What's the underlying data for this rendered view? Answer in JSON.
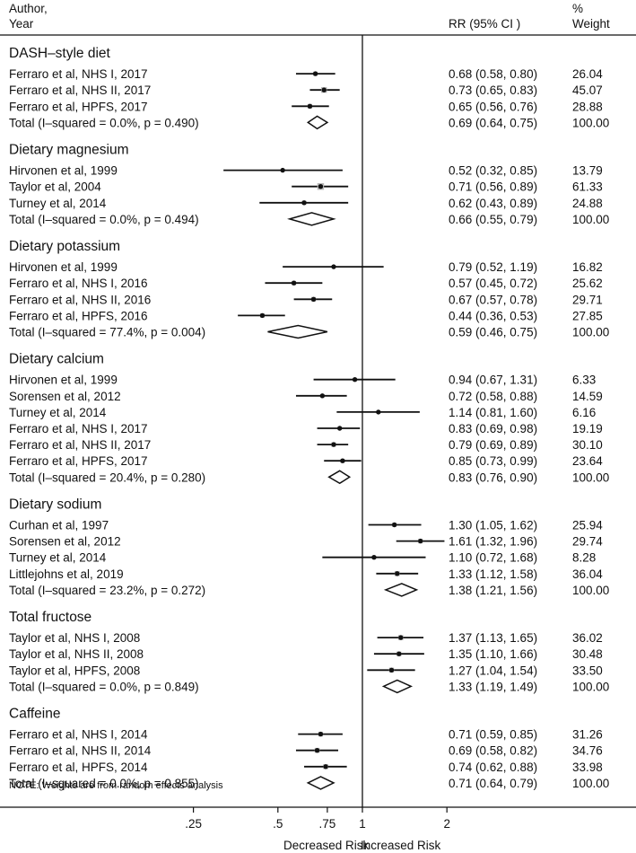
{
  "headers": {
    "author_line1": "Author,",
    "author_line2": "Year",
    "rr": "RR (95% CI )",
    "weight_line1": "%",
    "weight_line2": "Weight"
  },
  "note": "NOTE: Weights are from random effects analysis",
  "x_axis": {
    "ticks": [
      {
        "value": 0.25,
        "label": ".25"
      },
      {
        "value": 0.5,
        "label": ".5"
      },
      {
        "value": 0.75,
        "label": ".75"
      },
      {
        "value": 1,
        "label": "1"
      },
      {
        "value": 2,
        "label": "2"
      }
    ],
    "left_label": "Decreased Risk",
    "right_label": "Increased Risk"
  },
  "chart_data": {
    "type": "forest",
    "scale": "log",
    "reference_line": 1,
    "xlim": [
      0.18,
      3.3
    ],
    "groups": [
      {
        "name": "DASH–style diet",
        "studies": [
          {
            "label": "Ferraro et al, NHS I, 2017",
            "rr": 0.68,
            "lo": 0.58,
            "hi": 0.8,
            "rr_text": "0.68 (0.58, 0.80)",
            "weight": "26.04"
          },
          {
            "label": "Ferraro et al, NHS II, 2017",
            "rr": 0.73,
            "lo": 0.65,
            "hi": 0.83,
            "rr_text": "0.73 (0.65, 0.83)",
            "weight": "45.07"
          },
          {
            "label": "Ferraro et al, HPFS, 2017",
            "rr": 0.65,
            "lo": 0.56,
            "hi": 0.76,
            "rr_text": "0.65 (0.56, 0.76)",
            "weight": "28.88"
          }
        ],
        "total": {
          "label": "Total  (I–squared = 0.0%, p = 0.490)",
          "rr": 0.69,
          "lo": 0.64,
          "hi": 0.75,
          "rr_text": "0.69 (0.64, 0.75)",
          "weight": "100.00"
        }
      },
      {
        "name": "Dietary magnesium",
        "studies": [
          {
            "label": "Hirvonen et al, 1999",
            "rr": 0.52,
            "lo": 0.32,
            "hi": 0.85,
            "rr_text": "0.52 (0.32, 0.85)",
            "weight": "13.79"
          },
          {
            "label": "Taylor et al, 2004",
            "rr": 0.71,
            "lo": 0.56,
            "hi": 0.89,
            "rr_text": "0.71 (0.56, 0.89)",
            "weight": "61.33"
          },
          {
            "label": "Turney et al, 2014",
            "rr": 0.62,
            "lo": 0.43,
            "hi": 0.89,
            "rr_text": "0.62 (0.43, 0.89)",
            "weight": "24.88"
          }
        ],
        "total": {
          "label": "Total  (I–squared = 0.0%, p = 0.494)",
          "rr": 0.66,
          "lo": 0.55,
          "hi": 0.79,
          "rr_text": "0.66 (0.55, 0.79)",
          "weight": "100.00"
        }
      },
      {
        "name": "Dietary potassium",
        "studies": [
          {
            "label": "Hirvonen et al, 1999",
            "rr": 0.79,
            "lo": 0.52,
            "hi": 1.19,
            "rr_text": "0.79 (0.52, 1.19)",
            "weight": "16.82"
          },
          {
            "label": "Ferraro et al, NHS I, 2016",
            "rr": 0.57,
            "lo": 0.45,
            "hi": 0.72,
            "rr_text": "0.57 (0.45, 0.72)",
            "weight": "25.62"
          },
          {
            "label": "Ferraro et al, NHS II, 2016",
            "rr": 0.67,
            "lo": 0.57,
            "hi": 0.78,
            "rr_text": "0.67 (0.57, 0.78)",
            "weight": "29.71"
          },
          {
            "label": "Ferraro et al, HPFS, 2016",
            "rr": 0.44,
            "lo": 0.36,
            "hi": 0.53,
            "rr_text": "0.44 (0.36, 0.53)",
            "weight": "27.85"
          }
        ],
        "total": {
          "label": "Total  (I–squared = 77.4%, p = 0.004)",
          "rr": 0.59,
          "lo": 0.46,
          "hi": 0.75,
          "rr_text": "0.59 (0.46, 0.75)",
          "weight": "100.00"
        }
      },
      {
        "name": "Dietary calcium",
        "studies": [
          {
            "label": "Hirvonen et al, 1999",
            "rr": 0.94,
            "lo": 0.67,
            "hi": 1.31,
            "rr_text": "0.94 (0.67, 1.31)",
            "weight": "6.33"
          },
          {
            "label": "Sorensen et al, 2012",
            "rr": 0.72,
            "lo": 0.58,
            "hi": 0.88,
            "rr_text": "0.72 (0.58, 0.88)",
            "weight": "14.59"
          },
          {
            "label": "Turney et al, 2014",
            "rr": 1.14,
            "lo": 0.81,
            "hi": 1.6,
            "rr_text": "1.14 (0.81, 1.60)",
            "weight": "6.16"
          },
          {
            "label": "Ferraro et al, NHS I, 2017",
            "rr": 0.83,
            "lo": 0.69,
            "hi": 0.98,
            "rr_text": "0.83 (0.69, 0.98)",
            "weight": "19.19"
          },
          {
            "label": "Ferraro et al, NHS II, 2017",
            "rr": 0.79,
            "lo": 0.69,
            "hi": 0.89,
            "rr_text": "0.79 (0.69, 0.89)",
            "weight": "30.10"
          },
          {
            "label": "Ferraro et al, HPFS, 2017",
            "rr": 0.85,
            "lo": 0.73,
            "hi": 0.99,
            "rr_text": "0.85 (0.73, 0.99)",
            "weight": "23.64"
          }
        ],
        "total": {
          "label": "Total  (I–squared = 20.4%, p = 0.280)",
          "rr": 0.83,
          "lo": 0.76,
          "hi": 0.9,
          "rr_text": "0.83 (0.76, 0.90)",
          "weight": "100.00"
        }
      },
      {
        "name": "Dietary sodium",
        "studies": [
          {
            "label": "Curhan et al, 1997",
            "rr": 1.3,
            "lo": 1.05,
            "hi": 1.62,
            "rr_text": "1.30 (1.05, 1.62)",
            "weight": "25.94"
          },
          {
            "label": "Sorensen et al, 2012",
            "rr": 1.61,
            "lo": 1.32,
            "hi": 1.96,
            "rr_text": "1.61 (1.32, 1.96)",
            "weight": "29.74"
          },
          {
            "label": "Turney et al, 2014",
            "rr": 1.1,
            "lo": 0.72,
            "hi": 1.68,
            "rr_text": "1.10 (0.72, 1.68)",
            "weight": "8.28"
          },
          {
            "label": "Littlejohns et al, 2019",
            "rr": 1.33,
            "lo": 1.12,
            "hi": 1.58,
            "rr_text": "1.33 (1.12, 1.58)",
            "weight": "36.04"
          }
        ],
        "total": {
          "label": "Total  (I–squared = 23.2%, p = 0.272)",
          "rr": 1.38,
          "lo": 1.21,
          "hi": 1.56,
          "rr_text": "1.38 (1.21, 1.56)",
          "weight": "100.00"
        }
      },
      {
        "name": "Total fructose",
        "studies": [
          {
            "label": "Taylor et al, NHS I, 2008",
            "rr": 1.37,
            "lo": 1.13,
            "hi": 1.65,
            "rr_text": "1.37 (1.13, 1.65)",
            "weight": "36.02"
          },
          {
            "label": "Taylor et al, NHS II, 2008",
            "rr": 1.35,
            "lo": 1.1,
            "hi": 1.66,
            "rr_text": "1.35 (1.10, 1.66)",
            "weight": "30.48"
          },
          {
            "label": "Taylor et al, HPFS, 2008",
            "rr": 1.27,
            "lo": 1.04,
            "hi": 1.54,
            "rr_text": "1.27 (1.04, 1.54)",
            "weight": "33.50"
          }
        ],
        "total": {
          "label": "Total  (I–squared = 0.0%, p = 0.849)",
          "rr": 1.33,
          "lo": 1.19,
          "hi": 1.49,
          "rr_text": "1.33 (1.19, 1.49)",
          "weight": "100.00"
        }
      },
      {
        "name": "Caffeine",
        "studies": [
          {
            "label": "Ferraro et al, NHS I, 2014",
            "rr": 0.71,
            "lo": 0.59,
            "hi": 0.85,
            "rr_text": "0.71 (0.59, 0.85)",
            "weight": "31.26"
          },
          {
            "label": "Ferraro et al, NHS II, 2014",
            "rr": 0.69,
            "lo": 0.58,
            "hi": 0.82,
            "rr_text": "0.69 (0.58, 0.82)",
            "weight": "34.76"
          },
          {
            "label": "Ferraro et al, HPFS, 2014",
            "rr": 0.74,
            "lo": 0.62,
            "hi": 0.88,
            "rr_text": "0.74 (0.62, 0.88)",
            "weight": "33.98"
          }
        ],
        "total": {
          "label": "Total  (I–squared = 0.0%, p = 0.855)",
          "rr": 0.71,
          "lo": 0.64,
          "hi": 0.79,
          "rr_text": "0.71 (0.64, 0.79)",
          "weight": "100.00"
        }
      }
    ]
  }
}
